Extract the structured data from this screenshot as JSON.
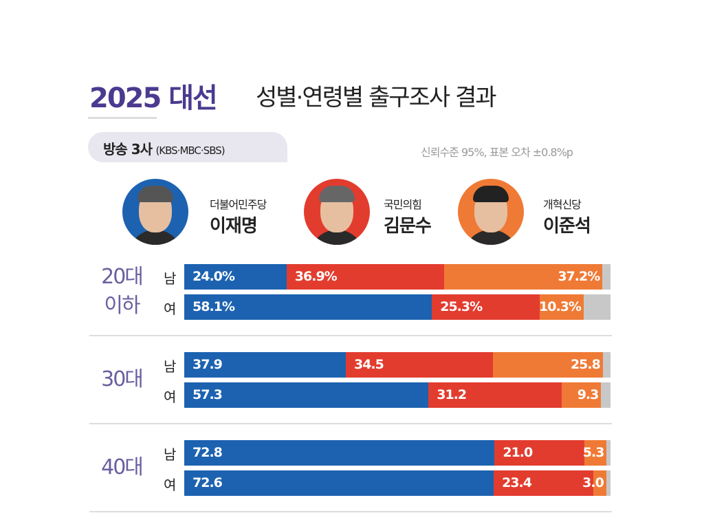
{
  "header": {
    "title_year": "2025 대선",
    "title_rest": "성별·연령별 출구조사 결과",
    "source_main": "방송 3사",
    "source_detail": "(KBS·MBC·SBS)",
    "margin_note": "신뢰수준 95%, 표본 오차 ±0.8%p"
  },
  "candidates": [
    {
      "party": "더불어민주당",
      "name": "이재명",
      "color": "#1c62b0"
    },
    {
      "party": "국민의힘",
      "name": "김문수",
      "color": "#e23c2e"
    },
    {
      "party": "개혁신당",
      "name": "이준석",
      "color": "#ef7a35"
    }
  ],
  "other_color": "#c8c8c8",
  "chart_data": {
    "type": "bar",
    "orientation": "horizontal",
    "stacked": true,
    "xlim": [
      0,
      100
    ],
    "series_names": [
      "이재명",
      "김문수",
      "이준석"
    ],
    "groups": [
      {
        "age": "20대 이하",
        "rows": [
          {
            "sex": "남",
            "values": [
              24.0,
              36.9,
              37.2
            ],
            "labels": [
              "24.0%",
              "36.9%",
              "37.2%"
            ]
          },
          {
            "sex": "여",
            "values": [
              58.1,
              25.3,
              10.3
            ],
            "labels": [
              "58.1%",
              "25.3%",
              "10.3%"
            ]
          }
        ]
      },
      {
        "age": "30대",
        "rows": [
          {
            "sex": "남",
            "values": [
              37.9,
              34.5,
              25.8
            ],
            "labels": [
              "37.9",
              "34.5",
              "25.8"
            ]
          },
          {
            "sex": "여",
            "values": [
              57.3,
              31.2,
              9.3
            ],
            "labels": [
              "57.3",
              "31.2",
              "9.3"
            ]
          }
        ]
      },
      {
        "age": "40대",
        "rows": [
          {
            "sex": "남",
            "values": [
              72.8,
              21.0,
              5.3
            ],
            "labels": [
              "72.8",
              "21.0",
              "5.3"
            ]
          },
          {
            "sex": "여",
            "values": [
              72.6,
              23.4,
              3.0
            ],
            "labels": [
              "72.6",
              "23.4",
              "3.0"
            ]
          }
        ]
      }
    ]
  }
}
